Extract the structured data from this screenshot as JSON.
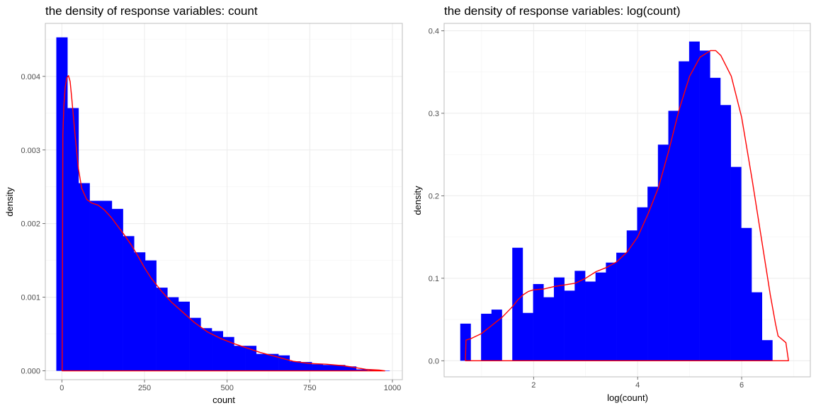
{
  "chart_data": [
    {
      "type": "histogram",
      "title": "the density of response variables: count",
      "xlabel": "count",
      "ylabel": "density",
      "xlim": [
        -50,
        1030
      ],
      "ylim": [
        -0.00012,
        0.00472
      ],
      "xticks": [
        0,
        250,
        500,
        750,
        1000
      ],
      "xtick_labels": [
        "0",
        "250",
        "500",
        "750",
        "1000"
      ],
      "yticks": [
        0.0,
        0.001,
        0.002,
        0.003,
        0.004
      ],
      "ytick_labels": [
        "0.000",
        "0.001",
        "0.002",
        "0.003",
        "0.004"
      ],
      "grid": true,
      "bar_color": "#0000FF",
      "density_color": "#FF0000",
      "bin_width": 33.6,
      "bins": [
        {
          "x0": -16.8,
          "x1": 16.8,
          "density": 0.00453
        },
        {
          "x0": 16.8,
          "x1": 50.4,
          "density": 0.00357
        },
        {
          "x0": 50.4,
          "x1": 84.0,
          "density": 0.00255
        },
        {
          "x0": 84.0,
          "x1": 117.6,
          "density": 0.00231
        },
        {
          "x0": 117.6,
          "x1": 151.2,
          "density": 0.00231
        },
        {
          "x0": 151.2,
          "x1": 184.8,
          "density": 0.0022
        },
        {
          "x0": 184.8,
          "x1": 218.4,
          "density": 0.00183
        },
        {
          "x0": 218.4,
          "x1": 252.0,
          "density": 0.00161
        },
        {
          "x0": 252.0,
          "x1": 285.6,
          "density": 0.0015
        },
        {
          "x0": 285.6,
          "x1": 319.2,
          "density": 0.00113
        },
        {
          "x0": 319.2,
          "x1": 352.8,
          "density": 0.001
        },
        {
          "x0": 352.8,
          "x1": 386.4,
          "density": 0.00094
        },
        {
          "x0": 386.4,
          "x1": 420.0,
          "density": 0.00072
        },
        {
          "x0": 420.0,
          "x1": 453.6,
          "density": 0.00058
        },
        {
          "x0": 453.6,
          "x1": 487.2,
          "density": 0.00054
        },
        {
          "x0": 487.2,
          "x1": 520.8,
          "density": 0.00046
        },
        {
          "x0": 520.8,
          "x1": 554.4,
          "density": 0.00034
        },
        {
          "x0": 554.4,
          "x1": 588.0,
          "density": 0.00034
        },
        {
          "x0": 588.0,
          "x1": 621.6,
          "density": 0.00023
        },
        {
          "x0": 621.6,
          "x1": 655.2,
          "density": 0.00023
        },
        {
          "x0": 655.2,
          "x1": 688.8,
          "density": 0.00021
        },
        {
          "x0": 688.8,
          "x1": 722.4,
          "density": 0.00013
        },
        {
          "x0": 722.4,
          "x1": 756.0,
          "density": 0.00012
        },
        {
          "x0": 756.0,
          "x1": 789.6,
          "density": 9e-05
        },
        {
          "x0": 789.6,
          "x1": 823.2,
          "density": 8e-05
        },
        {
          "x0": 823.2,
          "x1": 856.8,
          "density": 8e-05
        },
        {
          "x0": 856.8,
          "x1": 890.4,
          "density": 6e-05
        },
        {
          "x0": 890.4,
          "x1": 924.0,
          "density": 2e-05
        },
        {
          "x0": 924.0,
          "x1": 957.6,
          "density": 1e-05
        },
        {
          "x0": 957.6,
          "x1": 991.2,
          "density": 5e-06
        }
      ],
      "density_curve": {
        "x": [
          1,
          3,
          6,
          10,
          15,
          20,
          25,
          30,
          40,
          50,
          60,
          75,
          90,
          110,
          130,
          150,
          170,
          190,
          210,
          230,
          250,
          270,
          300,
          330,
          360,
          400,
          440,
          480,
          520,
          560,
          600,
          650,
          700,
          750,
          800,
          850,
          880,
          920,
          960,
          977
        ],
        "y": [
          0,
          0.0032,
          0.0036,
          0.00385,
          0.00398,
          0.00401,
          0.00393,
          0.0037,
          0.0032,
          0.00275,
          0.00248,
          0.00233,
          0.00228,
          0.00225,
          0.00218,
          0.00208,
          0.00196,
          0.00184,
          0.00171,
          0.00156,
          0.0014,
          0.00126,
          0.00109,
          0.00094,
          0.00082,
          0.00066,
          0.00053,
          0.00044,
          0.00037,
          0.00031,
          0.00025,
          0.00019,
          0.00013,
          0.0001,
          9e-05,
          7e-05,
          5e-05,
          2e-05,
          1e-05,
          0
        ]
      }
    },
    {
      "type": "histogram",
      "title": "the density of response variables: log(count)",
      "xlabel": "log(count)",
      "ylabel": "density",
      "xlim": [
        0.28,
        7.32
      ],
      "ylim": [
        -0.0195,
        0.409
      ],
      "xticks": [
        2,
        4,
        6
      ],
      "xtick_labels": [
        "2",
        "4",
        "6"
      ],
      "yticks": [
        0.0,
        0.1,
        0.2,
        0.3,
        0.4
      ],
      "ytick_labels": [
        "0.0",
        "0.1",
        "0.2",
        "0.3",
        "0.4"
      ],
      "grid": true,
      "bar_color": "#0000FF",
      "density_color": "#FF0000",
      "bin_width": 0.2,
      "bins": [
        {
          "x0": 0.59,
          "x1": 0.79,
          "density": 0.045
        },
        {
          "x0": 0.79,
          "x1": 0.99,
          "density": 0.0
        },
        {
          "x0": 0.99,
          "x1": 1.19,
          "density": 0.057
        },
        {
          "x0": 1.19,
          "x1": 1.39,
          "density": 0.062
        },
        {
          "x0": 1.39,
          "x1": 1.59,
          "density": 0.0
        },
        {
          "x0": 1.59,
          "x1": 1.79,
          "density": 0.137
        },
        {
          "x0": 1.79,
          "x1": 1.99,
          "density": 0.058
        },
        {
          "x0": 1.99,
          "x1": 2.19,
          "density": 0.093
        },
        {
          "x0": 2.19,
          "x1": 2.39,
          "density": 0.077
        },
        {
          "x0": 2.39,
          "x1": 2.59,
          "density": 0.101
        },
        {
          "x0": 2.59,
          "x1": 2.79,
          "density": 0.085
        },
        {
          "x0": 2.79,
          "x1": 2.99,
          "density": 0.109
        },
        {
          "x0": 2.99,
          "x1": 3.19,
          "density": 0.096
        },
        {
          "x0": 3.19,
          "x1": 3.39,
          "density": 0.107
        },
        {
          "x0": 3.39,
          "x1": 3.59,
          "density": 0.119
        },
        {
          "x0": 3.59,
          "x1": 3.79,
          "density": 0.131
        },
        {
          "x0": 3.79,
          "x1": 3.99,
          "density": 0.158
        },
        {
          "x0": 3.99,
          "x1": 4.19,
          "density": 0.186
        },
        {
          "x0": 4.19,
          "x1": 4.39,
          "density": 0.211
        },
        {
          "x0": 4.39,
          "x1": 4.59,
          "density": 0.262
        },
        {
          "x0": 4.59,
          "x1": 4.79,
          "density": 0.303
        },
        {
          "x0": 4.79,
          "x1": 4.99,
          "density": 0.363
        },
        {
          "x0": 4.99,
          "x1": 5.19,
          "density": 0.387
        },
        {
          "x0": 5.19,
          "x1": 5.39,
          "density": 0.376
        },
        {
          "x0": 5.39,
          "x1": 5.59,
          "density": 0.343
        },
        {
          "x0": 5.59,
          "x1": 5.79,
          "density": 0.31
        },
        {
          "x0": 5.79,
          "x1": 5.99,
          "density": 0.235
        },
        {
          "x0": 5.99,
          "x1": 6.19,
          "density": 0.161
        },
        {
          "x0": 6.19,
          "x1": 6.39,
          "density": 0.083
        },
        {
          "x0": 6.39,
          "x1": 6.59,
          "density": 0.025
        }
      ],
      "density_curve": {
        "x": [
          0.69,
          0.7,
          0.8,
          1.0,
          1.2,
          1.4,
          1.6,
          1.7,
          1.8,
          1.9,
          2.0,
          2.2,
          2.4,
          2.6,
          2.8,
          3.0,
          3.2,
          3.4,
          3.6,
          3.8,
          4.0,
          4.2,
          4.4,
          4.6,
          4.8,
          5.0,
          5.2,
          5.4,
          5.5,
          5.6,
          5.8,
          6.0,
          6.2,
          6.4,
          6.55,
          6.65,
          6.7,
          6.85,
          6.9
        ],
        "y": [
          0,
          0.025,
          0.027,
          0.033,
          0.043,
          0.053,
          0.066,
          0.074,
          0.08,
          0.084,
          0.086,
          0.087,
          0.09,
          0.092,
          0.094,
          0.1,
          0.108,
          0.113,
          0.12,
          0.132,
          0.15,
          0.178,
          0.21,
          0.255,
          0.305,
          0.345,
          0.368,
          0.376,
          0.376,
          0.37,
          0.345,
          0.295,
          0.22,
          0.14,
          0.08,
          0.045,
          0.03,
          0.022,
          0
        ]
      }
    }
  ]
}
